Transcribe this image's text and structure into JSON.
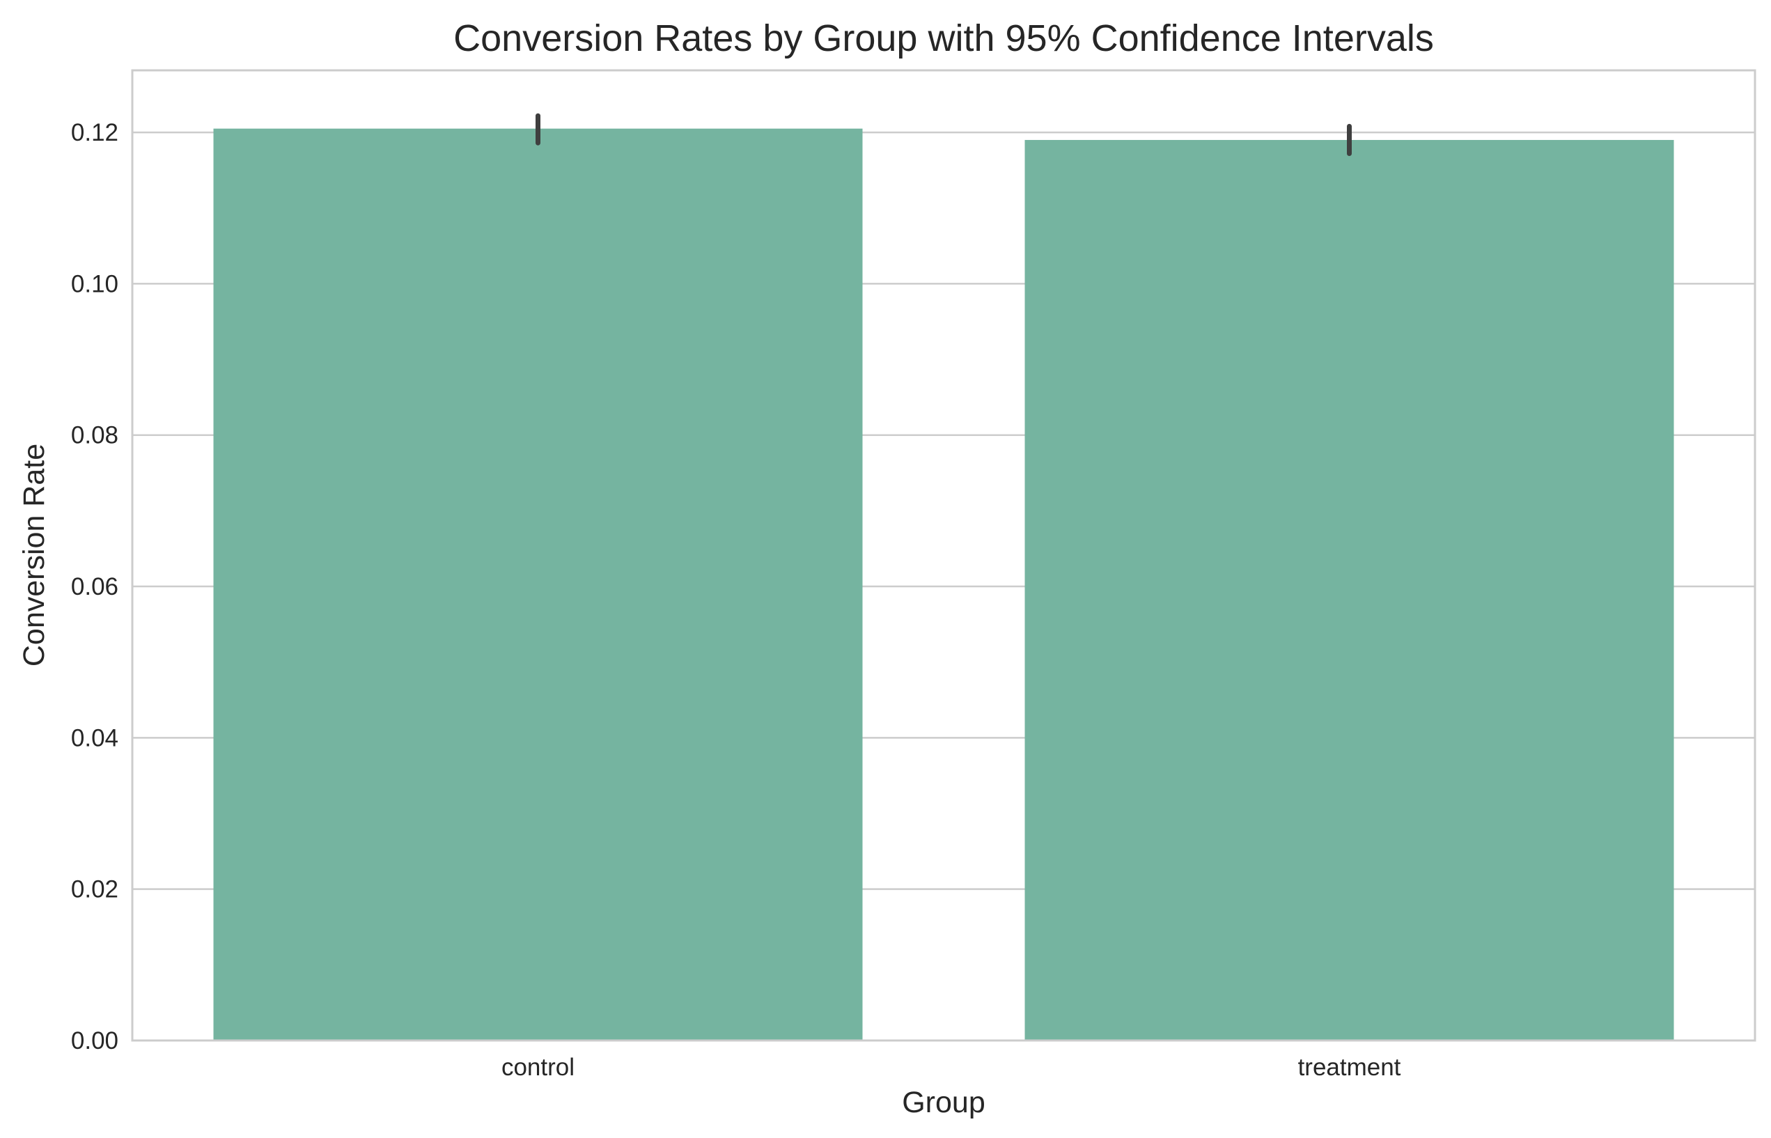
{
  "chart_data": {
    "type": "bar",
    "title": "Conversion Rates by Group with 95% Confidence Intervals",
    "xlabel": "Group",
    "ylabel": "Conversion Rate",
    "categories": [
      "control",
      "treatment"
    ],
    "values": [
      0.1205,
      0.119
    ],
    "error_bars": [
      {
        "low": 0.1186,
        "high": 0.1222
      },
      {
        "low": 0.1172,
        "high": 0.1208
      }
    ],
    "ylim": [
      0,
      0.1282
    ],
    "yticks": [
      0,
      0.02,
      0.04,
      0.06,
      0.08,
      0.1,
      0.12
    ],
    "ytick_labels": [
      "0.00",
      "0.02",
      "0.04",
      "0.06",
      "0.08",
      "0.10",
      "0.12"
    ],
    "grid": true,
    "bar_color": "#75b4a0",
    "error_color": "#3f3f3f"
  }
}
